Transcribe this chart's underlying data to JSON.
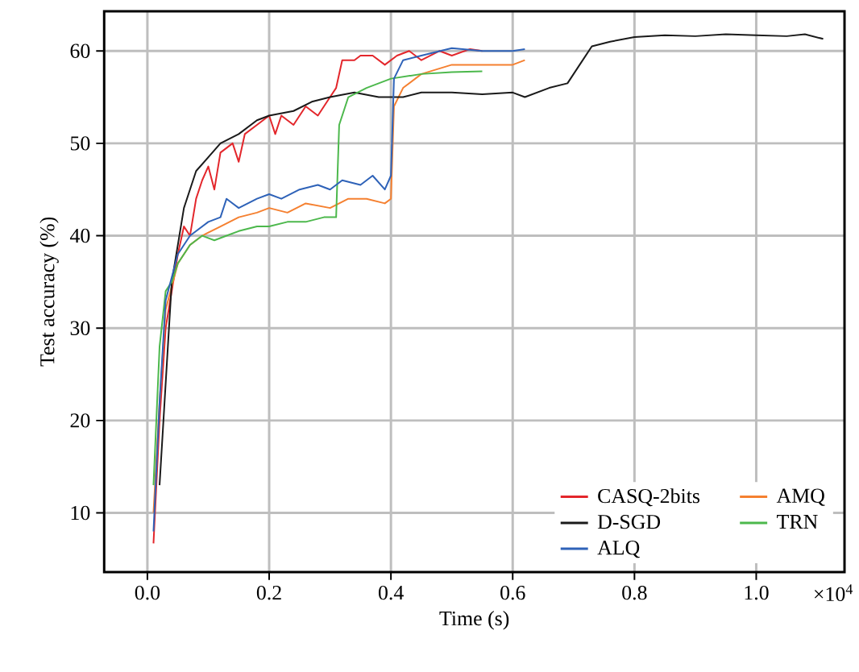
{
  "chart_data": {
    "type": "line",
    "xlabel": "Time (s)",
    "ylabel": "Test accuracy (%)",
    "xlim": [
      -0.071,
      1.145
    ],
    "ylim": [
      3.6,
      64.3
    ],
    "xticks": [
      {
        "value": 0,
        "label": "0.0"
      },
      {
        "value": 0.2,
        "label": "0.2"
      },
      {
        "value": 0.4,
        "label": "0.4"
      },
      {
        "value": 0.6,
        "label": "0.6"
      },
      {
        "value": 0.8,
        "label": "0.8"
      },
      {
        "value": 1.0,
        "label": "1.0"
      }
    ],
    "yticks": [
      10,
      20,
      30,
      40,
      50,
      60
    ],
    "grid": true,
    "legend": "bottom right",
    "marker": "none",
    "line_style": "solid",
    "annotations": [
      "×10$^{4}$"
    ],
    "series": [
      {
        "name": "CASQ-2bits",
        "color": "#e3262b",
        "x": [
          0.01,
          0.02,
          0.03,
          0.05,
          0.06,
          0.07,
          0.08,
          0.09,
          0.1,
          0.11,
          0.12,
          0.14,
          0.15,
          0.16,
          0.18,
          0.2,
          0.21,
          0.22,
          0.24,
          0.26,
          0.28,
          0.3,
          0.31,
          0.32,
          0.34,
          0.35,
          0.37,
          0.39,
          0.41,
          0.43,
          0.45,
          0.48,
          0.5,
          0.53,
          0.55
        ],
        "values": [
          6.7,
          20,
          30,
          38,
          41,
          40,
          44,
          46,
          47.5,
          45,
          49,
          50,
          48,
          51,
          52,
          53,
          51,
          53,
          52,
          54,
          53,
          55,
          56,
          59,
          59,
          59.5,
          59.5,
          58.5,
          59.5,
          60,
          59,
          60,
          59.5,
          60.2,
          60
        ]
      },
      {
        "name": "AMQ",
        "color": "#f58030",
        "x": [
          0.01,
          0.02,
          0.03,
          0.05,
          0.07,
          0.09,
          0.12,
          0.15,
          0.18,
          0.2,
          0.23,
          0.26,
          0.3,
          0.33,
          0.36,
          0.39,
          0.4,
          0.405,
          0.42,
          0.45,
          0.5,
          0.55,
          0.6,
          0.62
        ],
        "values": [
          10,
          22,
          32,
          37,
          39,
          40,
          41,
          42,
          42.5,
          43,
          42.5,
          43.5,
          43,
          44,
          44,
          43.5,
          44,
          54,
          56,
          57.5,
          58.5,
          58.5,
          58.5,
          59
        ]
      },
      {
        "name": "D-SGD",
        "color": "#1a1a1a",
        "x": [
          0.02,
          0.04,
          0.06,
          0.08,
          0.1,
          0.12,
          0.15,
          0.18,
          0.2,
          0.24,
          0.27,
          0.3,
          0.34,
          0.38,
          0.42,
          0.45,
          0.5,
          0.55,
          0.6,
          0.62,
          0.66,
          0.69,
          0.71,
          0.73,
          0.76,
          0.8,
          0.85,
          0.9,
          0.95,
          1.0,
          1.05,
          1.08,
          1.11
        ],
        "values": [
          13,
          35,
          43,
          47,
          48.5,
          50,
          51,
          52.5,
          53,
          53.5,
          54.5,
          55,
          55.5,
          55,
          55,
          55.5,
          55.5,
          55.3,
          55.5,
          55,
          56,
          56.5,
          58.5,
          60.5,
          61,
          61.5,
          61.7,
          61.6,
          61.8,
          61.7,
          61.6,
          61.8,
          61.3
        ]
      },
      {
        "name": "TRN",
        "color": "#4cb84c",
        "x": [
          0.01,
          0.02,
          0.03,
          0.04,
          0.05,
          0.07,
          0.09,
          0.11,
          0.13,
          0.15,
          0.18,
          0.2,
          0.23,
          0.26,
          0.29,
          0.31,
          0.315,
          0.33,
          0.36,
          0.4,
          0.45,
          0.5,
          0.55
        ],
        "values": [
          13,
          28,
          34,
          35,
          37,
          39,
          40,
          39.5,
          40,
          40.5,
          41,
          41,
          41.5,
          41.5,
          42,
          42,
          52,
          55,
          56,
          57,
          57.5,
          57.7,
          57.8
        ]
      },
      {
        "name": "ALQ",
        "color": "#2e62b8",
        "x": [
          0.01,
          0.02,
          0.03,
          0.05,
          0.07,
          0.09,
          0.1,
          0.12,
          0.13,
          0.15,
          0.18,
          0.2,
          0.22,
          0.25,
          0.28,
          0.3,
          0.32,
          0.35,
          0.37,
          0.39,
          0.4,
          0.405,
          0.42,
          0.45,
          0.5,
          0.55,
          0.6,
          0.62
        ],
        "values": [
          8,
          22,
          33,
          38,
          40,
          41,
          41.5,
          42,
          44,
          43,
          44,
          44.5,
          44,
          45,
          45.5,
          45,
          46,
          45.5,
          46.5,
          45,
          46.5,
          57,
          59,
          59.5,
          60.3,
          60,
          60,
          60.2
        ]
      }
    ]
  }
}
